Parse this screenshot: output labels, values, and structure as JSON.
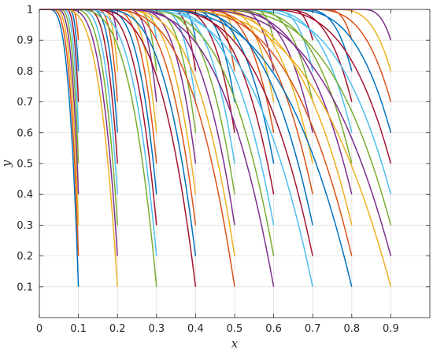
{
  "chart_data": {
    "type": "line",
    "title": "",
    "xlabel": "x",
    "ylabel": "y",
    "xlim": [
      0,
      1
    ],
    "ylim": [
      0,
      1
    ],
    "grid": true,
    "legend": "none",
    "x_ticks": [
      "0",
      "0.1",
      "0.2",
      "0.3",
      "0.4",
      "0.5",
      "0.6",
      "0.7",
      "0.8",
      "0.9"
    ],
    "y_ticks": [
      "0.1",
      "0.2",
      "0.3",
      "0.4",
      "0.5",
      "0.6",
      "0.7",
      "0.8",
      "0.9",
      "1"
    ],
    "x_tick_values": [
      0,
      0.1,
      0.2,
      0.3,
      0.4,
      0.5,
      0.6,
      0.7,
      0.8,
      0.9
    ],
    "y_tick_values": [
      0.1,
      0.2,
      0.3,
      0.4,
      0.5,
      0.6,
      0.7,
      0.8,
      0.9,
      1
    ],
    "series_colors": [
      "#0072BD",
      "#D95319",
      "#EDB120",
      "#7E2F8E",
      "#77AC30",
      "#4DBEEE",
      "#A2142F"
    ],
    "curve_family": {
      "endpoints_x": [
        0.1,
        0.2,
        0.3,
        0.4,
        0.5,
        0.6,
        0.7,
        0.8,
        0.9
      ],
      "endpoints_y": [
        0.1,
        0.2,
        0.3,
        0.4,
        0.5,
        0.6,
        0.7,
        0.8,
        0.9
      ],
      "start_y": 1
    }
  }
}
